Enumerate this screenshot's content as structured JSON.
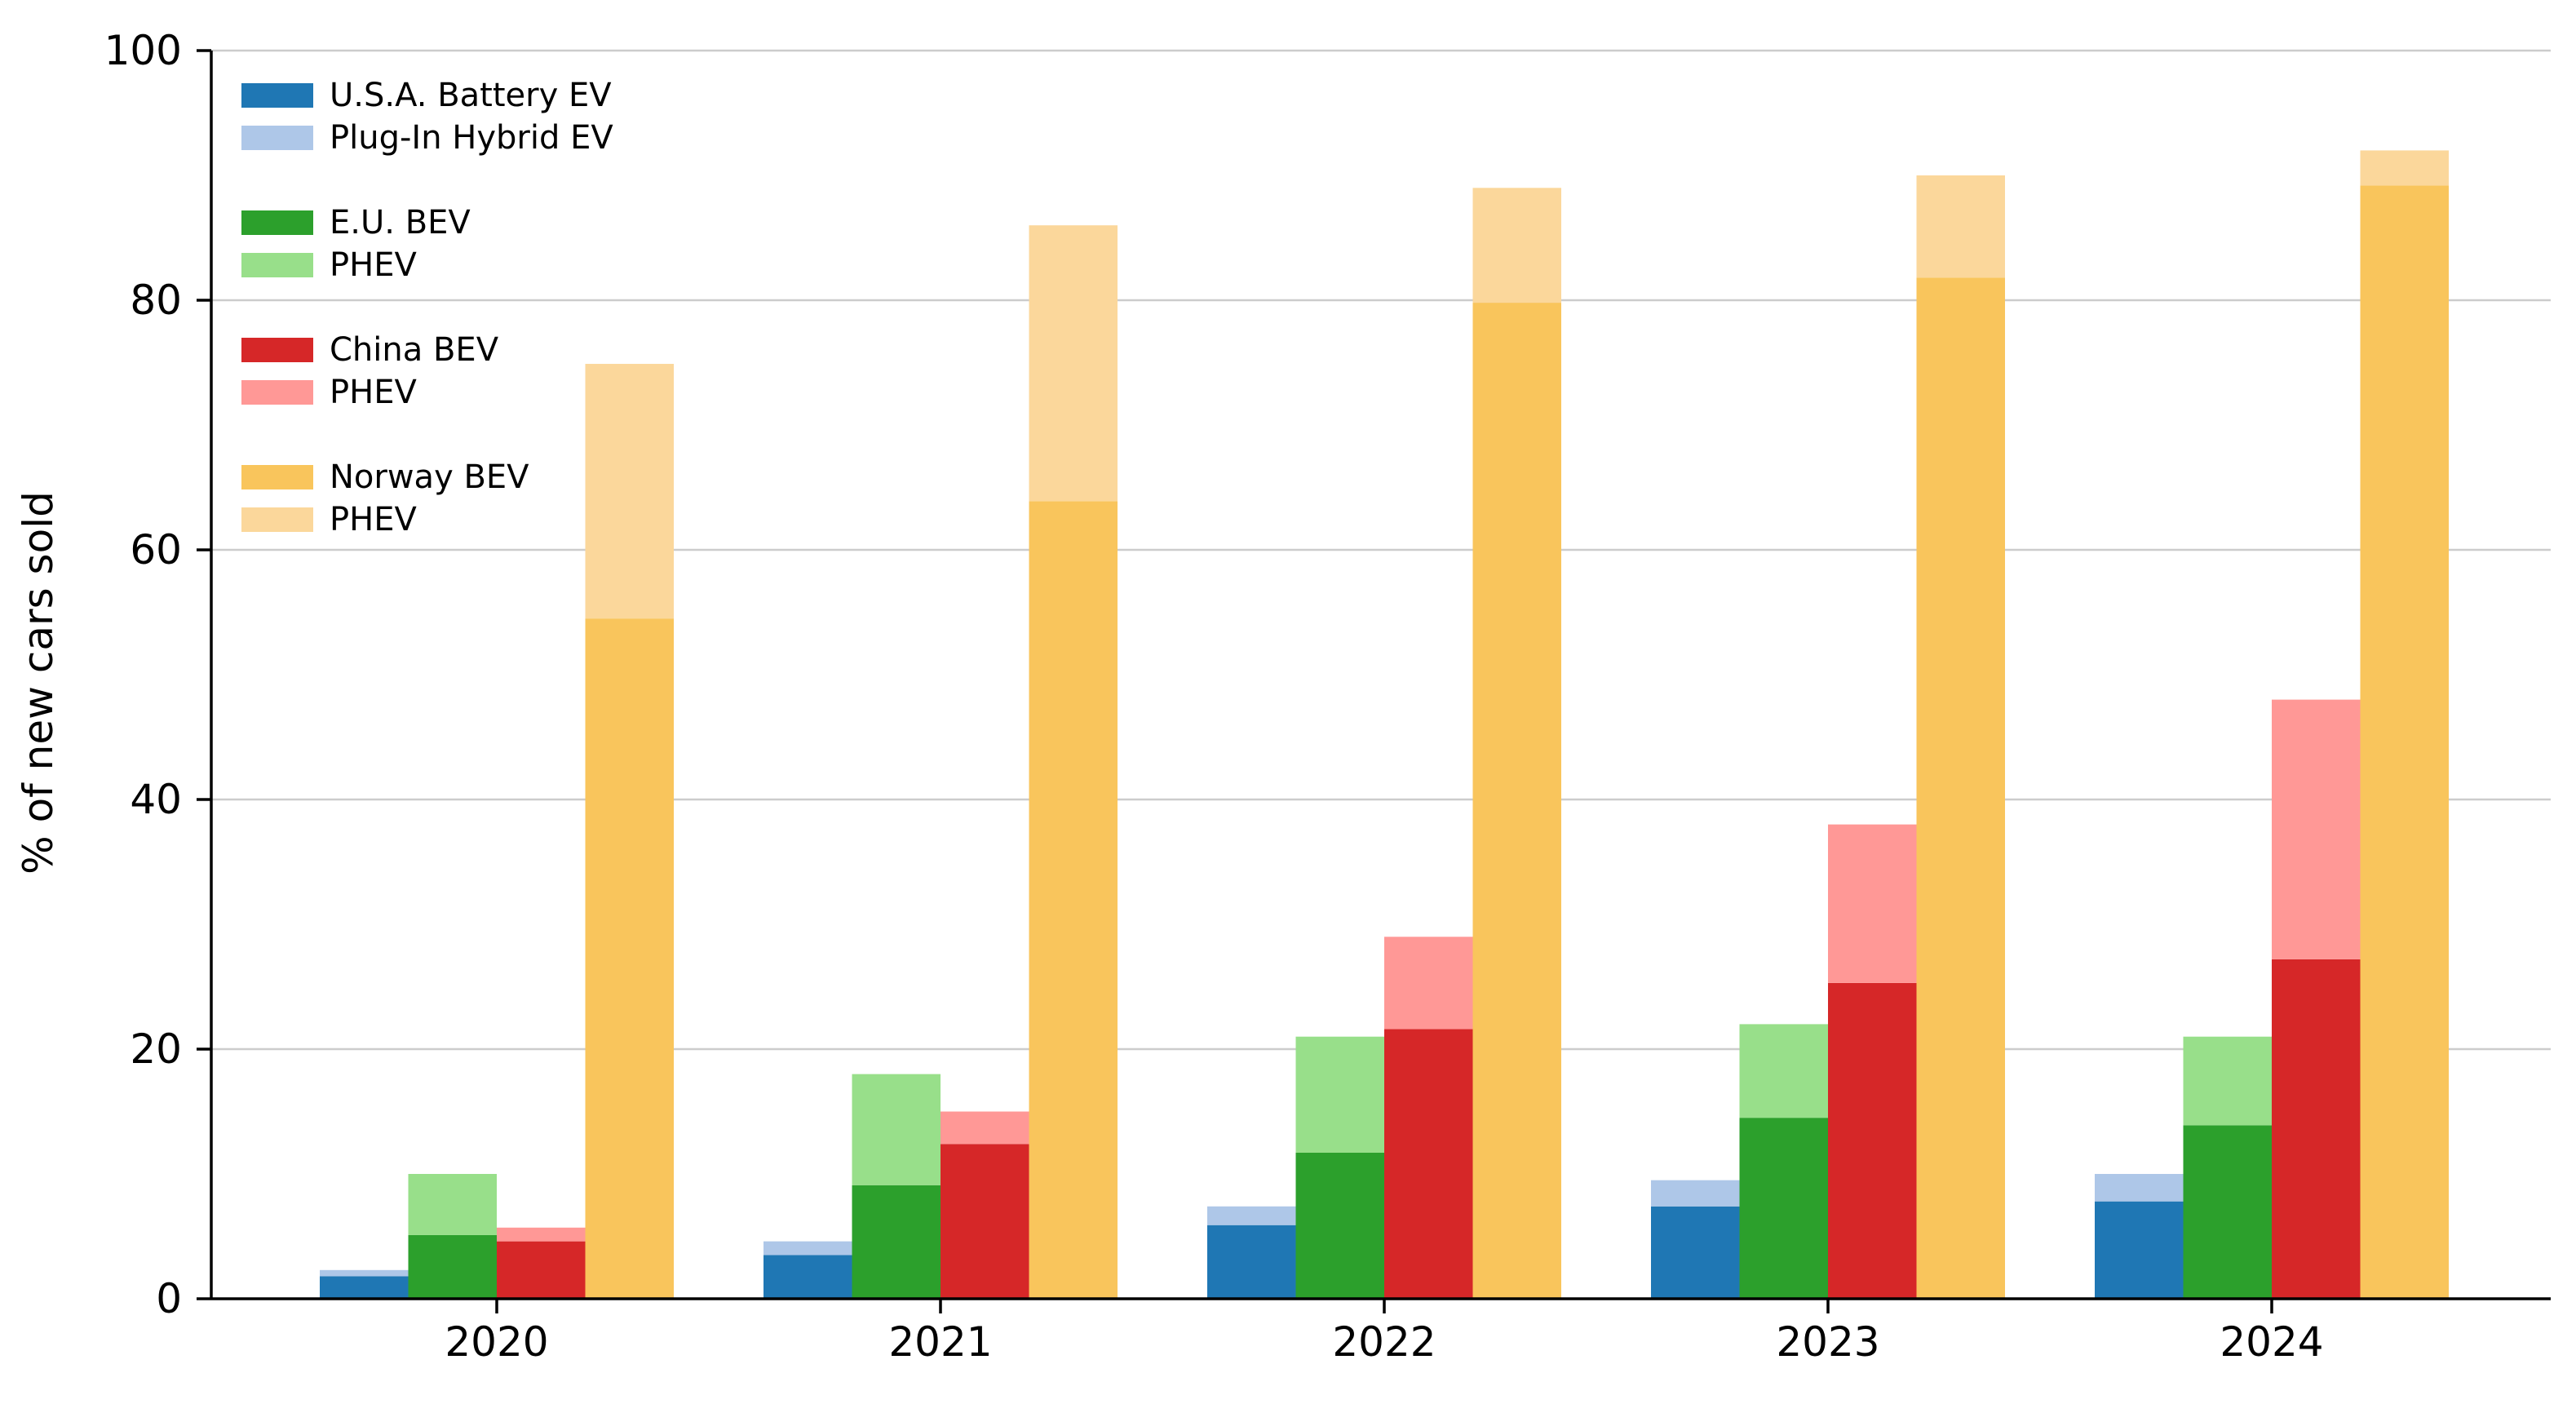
{
  "chart_data": {
    "type": "bar",
    "stacked": true,
    "grouped": true,
    "title": "",
    "xlabel": "",
    "ylabel": "% of new cars sold",
    "ylim": [
      0,
      100
    ],
    "yticks": [
      0,
      20,
      40,
      60,
      80,
      100
    ],
    "grid": "horizontal",
    "legend_position": "top-left",
    "categories": [
      "2020",
      "2021",
      "2022",
      "2023",
      "2024"
    ],
    "groups": [
      {
        "region": "U.S.A.",
        "bev": {
          "name": "U.S.A. Battery EV",
          "color": "#1f77b4",
          "values": [
            1.8,
            3.5,
            5.9,
            7.4,
            7.8
          ]
        },
        "phev": {
          "name": "Plug-In Hybrid EV",
          "color": "#aec7e8",
          "values": [
            0.5,
            1.1,
            1.5,
            2.1,
            2.2
          ]
        }
      },
      {
        "region": "E.U.",
        "bev": {
          "name": "E.U. BEV",
          "color": "#2ca02c",
          "values": [
            5.1,
            9.1,
            11.7,
            14.5,
            13.9
          ]
        },
        "phev": {
          "name": "PHEV",
          "color": "#98df8a",
          "values": [
            4.9,
            8.9,
            9.3,
            7.5,
            7.1
          ]
        }
      },
      {
        "region": "China",
        "bev": {
          "name": "China BEV",
          "color": "#d62728",
          "values": [
            4.6,
            12.4,
            21.6,
            25.3,
            27.2
          ]
        },
        "phev": {
          "name": "PHEV",
          "color": "#ff9896",
          "values": [
            1.1,
            2.6,
            7.4,
            12.7,
            20.8
          ]
        }
      },
      {
        "region": "Norway",
        "bev": {
          "name": "Norway BEV",
          "color": "#f9c55c",
          "values": [
            54.5,
            63.9,
            79.8,
            81.8,
            89.2
          ]
        },
        "phev": {
          "name": "PHEV",
          "color": "#fbd79b",
          "values": [
            20.4,
            22.1,
            9.2,
            8.2,
            2.8
          ]
        }
      }
    ]
  },
  "colors": {
    "axis": "#000000",
    "grid": "#cccccc",
    "text": "#000000"
  }
}
